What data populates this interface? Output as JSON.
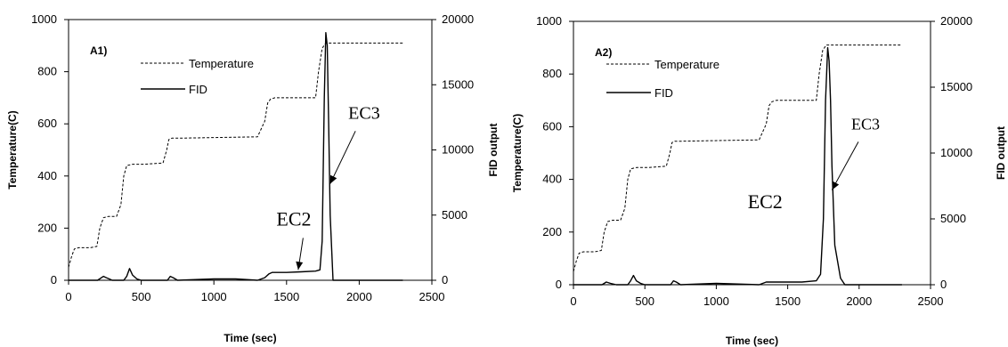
{
  "chart_data": [
    {
      "type": "line",
      "panel_label": "A1)",
      "xlabel": "Time (sec)",
      "ylabel": "Temperature(C)",
      "y2label": "FID output",
      "xlim": [
        0,
        2500
      ],
      "ylim": [
        0,
        1000
      ],
      "y2lim": [
        0,
        20000
      ],
      "xticks": [
        0,
        500,
        1000,
        1500,
        2000,
        2500
      ],
      "yticks": [
        0,
        200,
        400,
        600,
        800,
        1000
      ],
      "y2ticks": [
        0,
        5000,
        10000,
        15000,
        20000
      ],
      "legend": [
        "Temperature",
        "FID"
      ],
      "legend_position": "top-left",
      "series": [
        {
          "name": "Temperature",
          "axis": "left",
          "style": "dashed",
          "x": [
            0,
            20,
            40,
            70,
            150,
            195,
            215,
            240,
            275,
            330,
            360,
            380,
            400,
            440,
            520,
            650,
            675,
            690,
            710,
            760,
            1300,
            1350,
            1370,
            1390,
            1420,
            1700,
            1720,
            1745,
            1770,
            1800,
            2300
          ],
          "y": [
            50,
            90,
            120,
            125,
            125,
            130,
            200,
            240,
            245,
            245,
            290,
            400,
            440,
            445,
            445,
            450,
            500,
            540,
            545,
            545,
            550,
            610,
            680,
            695,
            700,
            700,
            800,
            890,
            910,
            910,
            910
          ]
        },
        {
          "name": "FID",
          "axis": "right",
          "style": "solid",
          "x": [
            0,
            200,
            240,
            260,
            280,
            300,
            330,
            380,
            400,
            420,
            440,
            470,
            500,
            680,
            700,
            720,
            750,
            1000,
            1150,
            1300,
            1350,
            1380,
            1400,
            1500,
            1600,
            1700,
            1730,
            1745,
            1760,
            1770,
            1780,
            1790,
            1800,
            1820,
            1900,
            2300
          ],
          "y": [
            0,
            0,
            300,
            200,
            100,
            0,
            0,
            0,
            300,
            900,
            400,
            100,
            0,
            0,
            300,
            200,
            0,
            100,
            100,
            0,
            200,
            500,
            600,
            600,
            650,
            700,
            800,
            3000,
            14000,
            19000,
            18000,
            12000,
            5000,
            0,
            0,
            0
          ]
        }
      ],
      "annotations": [
        {
          "text": "EC2",
          "x": 1430,
          "y": 210,
          "arrow_to": [
            1580,
            40
          ]
        },
        {
          "text": "EC3",
          "x": 1925,
          "y": 620,
          "arrow_to": [
            1800,
            370
          ]
        }
      ]
    },
    {
      "type": "line",
      "panel_label": "A2)",
      "xlabel": "Time (sec)",
      "ylabel": "Temperature(C)",
      "y2label": "FID output",
      "xlim": [
        0,
        2500
      ],
      "ylim": [
        0,
        1000
      ],
      "y2lim": [
        0,
        20000
      ],
      "xticks": [
        0,
        500,
        1000,
        1500,
        2000,
        2500
      ],
      "yticks": [
        0,
        200,
        400,
        600,
        800,
        1000
      ],
      "y2ticks": [
        0,
        5000,
        10000,
        15000,
        20000
      ],
      "legend": [
        "Temperature",
        "FID"
      ],
      "legend_position": "top-left",
      "series": [
        {
          "name": "Temperature",
          "axis": "left",
          "style": "dashed",
          "x": [
            0,
            20,
            40,
            70,
            150,
            195,
            215,
            240,
            275,
            330,
            360,
            380,
            400,
            440,
            520,
            650,
            675,
            690,
            710,
            760,
            1300,
            1350,
            1370,
            1390,
            1420,
            1700,
            1720,
            1745,
            1770,
            1800,
            2300
          ],
          "y": [
            50,
            90,
            120,
            125,
            125,
            130,
            200,
            240,
            245,
            245,
            290,
            400,
            440,
            445,
            445,
            450,
            500,
            540,
            545,
            545,
            550,
            610,
            680,
            695,
            700,
            700,
            800,
            890,
            910,
            910,
            910
          ]
        },
        {
          "name": "FID",
          "axis": "right",
          "style": "solid",
          "x": [
            0,
            200,
            230,
            260,
            300,
            380,
            400,
            420,
            440,
            470,
            500,
            680,
            700,
            720,
            750,
            1000,
            1300,
            1350,
            1400,
            1600,
            1700,
            1730,
            1750,
            1765,
            1780,
            1790,
            1800,
            1810,
            1830,
            1870,
            1900,
            2300
          ],
          "y": [
            0,
            0,
            200,
            100,
            0,
            0,
            300,
            700,
            300,
            100,
            0,
            0,
            300,
            200,
            0,
            100,
            0,
            200,
            200,
            200,
            300,
            800,
            5000,
            14000,
            18000,
            17000,
            14000,
            9000,
            3000,
            500,
            0,
            0
          ]
        }
      ],
      "annotations": [
        {
          "text": "EC2",
          "x": 1220,
          "y": 290,
          "arrow_to": [
            0,
            0
          ]
        },
        {
          "text": "EC3",
          "x": 1945,
          "y": 590,
          "arrow_to": [
            1810,
            360
          ]
        }
      ]
    }
  ]
}
